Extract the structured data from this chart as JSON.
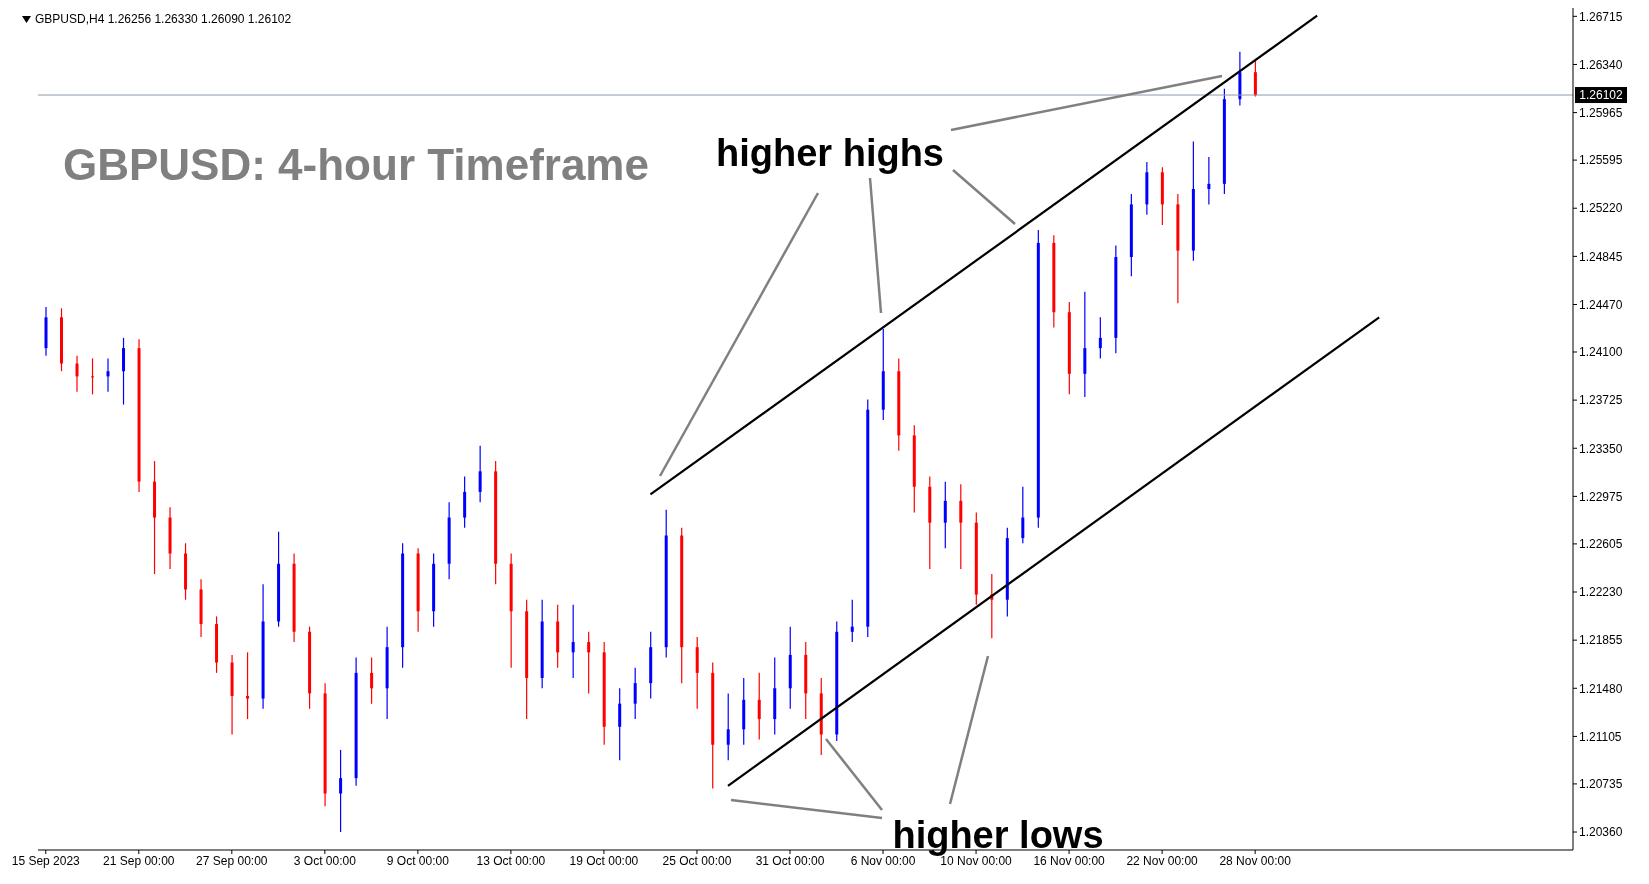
{
  "chart_data": {
    "type": "candlestick",
    "title": "GBPUSD: 4-hour Timeframe",
    "subtitle": "GBPUSD,H4  1.26256 1.26330 1.26090 1.26102",
    "annotations": [
      "higher highs",
      "higher lows"
    ],
    "categories": [
      "15 Sep 2023",
      null,
      null,
      null,
      null,
      null,
      "21 Sep 00:00",
      null,
      null,
      null,
      null,
      null,
      "27 Sep 00:00",
      null,
      null,
      null,
      null,
      null,
      "3 Oct 00:00",
      null,
      null,
      null,
      null,
      null,
      "9 Oct 00:00",
      null,
      null,
      null,
      null,
      null,
      "13 Oct 00:00",
      null,
      null,
      null,
      null,
      null,
      "19 Oct 00:00",
      null,
      null,
      null,
      null,
      null,
      "25 Oct 00:00",
      null,
      null,
      null,
      null,
      null,
      "31 Oct 00:00",
      null,
      null,
      null,
      null,
      null,
      "6 Nov 00:00",
      null,
      null,
      null,
      null,
      null,
      "10 Nov 00:00",
      null,
      null,
      null,
      null,
      null,
      "16 Nov 00:00",
      null,
      null,
      null,
      null,
      null,
      "22 Nov 00:00",
      null,
      null,
      null,
      null,
      null,
      "28 Nov 00:00",
      null,
      null,
      null,
      null,
      null,
      null,
      null,
      null,
      null,
      null,
      null,
      null,
      null,
      null,
      null,
      null,
      null,
      null,
      null,
      null
    ],
    "ohlc": [
      [
        1.2413,
        1.2445,
        1.2407,
        1.2437
      ],
      [
        1.2437,
        1.2444,
        1.2395,
        1.2401
      ],
      [
        1.2401,
        1.2407,
        1.2379,
        1.2391
      ],
      [
        1.2391,
        1.2405,
        1.2377,
        1.2391
      ],
      [
        1.2391,
        1.2405,
        1.2379,
        1.2395
      ],
      [
        1.2395,
        1.2421,
        1.2369,
        1.2413
      ],
      [
        1.2413,
        1.242,
        1.2301,
        1.2309
      ],
      [
        1.2309,
        1.2325,
        1.2237,
        1.2281
      ],
      [
        1.2281,
        1.2289,
        1.2241,
        1.2253
      ],
      [
        1.2253,
        1.2261,
        1.2217,
        1.2225
      ],
      [
        1.2225,
        1.2233,
        1.2188,
        1.2198
      ],
      [
        1.2198,
        1.2204,
        1.216,
        1.2168
      ],
      [
        1.2168,
        1.2174,
        1.2112,
        1.2142
      ],
      [
        1.2142,
        1.2176,
        1.2124,
        1.214
      ],
      [
        1.214,
        1.2229,
        1.2132,
        1.22
      ],
      [
        1.22,
        1.227,
        1.2196,
        1.2245
      ],
      [
        1.2245,
        1.2253,
        1.2184,
        1.2192
      ],
      [
        1.2192,
        1.2196,
        1.2132,
        1.2144
      ],
      [
        1.2144,
        1.2152,
        1.2056,
        1.2066
      ],
      [
        1.2066,
        1.21,
        1.2036,
        1.2078
      ],
      [
        1.2078,
        1.2172,
        1.2072,
        1.216
      ],
      [
        1.216,
        1.2172,
        1.2136,
        1.2148
      ],
      [
        1.2148,
        1.2196,
        1.2124,
        1.218
      ],
      [
        1.218,
        1.2261,
        1.2164,
        1.2253
      ],
      [
        1.2253,
        1.2257,
        1.2192,
        1.2208
      ],
      [
        1.2208,
        1.2253,
        1.2196,
        1.2245
      ],
      [
        1.2245,
        1.2293,
        1.2233,
        1.2281
      ],
      [
        1.2281,
        1.2313,
        1.2273,
        1.2301
      ],
      [
        1.2301,
        1.2337,
        1.2293,
        1.2317
      ],
      [
        1.2317,
        1.2325,
        1.2229,
        1.2245
      ],
      [
        1.2245,
        1.2253,
        1.2164,
        1.2208
      ],
      [
        1.2208,
        1.2217,
        1.2124,
        1.2156
      ],
      [
        1.2156,
        1.2217,
        1.2148,
        1.22
      ],
      [
        1.22,
        1.2213,
        1.2164,
        1.2176
      ],
      [
        1.2176,
        1.2213,
        1.2156,
        1.2184
      ],
      [
        1.2184,
        1.2192,
        1.2144,
        1.2176
      ],
      [
        1.2176,
        1.2184,
        1.2104,
        1.2118
      ],
      [
        1.2118,
        1.2148,
        1.2092,
        1.2136
      ],
      [
        1.2136,
        1.2164,
        1.2124,
        1.2152
      ],
      [
        1.2152,
        1.2192,
        1.214,
        1.218
      ],
      [
        1.218,
        1.2287,
        1.2172,
        1.2267
      ],
      [
        1.2267,
        1.2273,
        1.2152,
        1.218
      ],
      [
        1.218,
        1.2188,
        1.2132,
        1.216
      ],
      [
        1.216,
        1.2168,
        1.207,
        1.2104
      ],
      [
        1.2104,
        1.2144,
        1.2092,
        1.2116
      ],
      [
        1.2116,
        1.2156,
        1.2104,
        1.2139
      ],
      [
        1.2139,
        1.216,
        1.2108,
        1.2124
      ],
      [
        1.2124,
        1.2172,
        1.2112,
        1.2148
      ],
      [
        1.2148,
        1.2196,
        1.2132,
        1.2174
      ],
      [
        1.2174,
        1.2184,
        1.2124,
        1.2144
      ],
      [
        1.2144,
        1.2156,
        1.2096,
        1.2112
      ],
      [
        1.2112,
        1.22,
        1.2107,
        1.2192
      ],
      [
        1.2192,
        1.2217,
        1.2184,
        1.2196
      ],
      [
        1.2196,
        1.2373,
        1.2188,
        1.2365
      ],
      [
        1.2365,
        1.2428,
        1.2357,
        1.2395
      ],
      [
        1.2395,
        1.2405,
        1.2333,
        1.2345
      ],
      [
        1.2345,
        1.2353,
        1.2285,
        1.2305
      ],
      [
        1.2305,
        1.2313,
        1.2241,
        1.2277
      ],
      [
        1.2277,
        1.2309,
        1.2257,
        1.2294
      ],
      [
        1.2294,
        1.2307,
        1.2241,
        1.2277
      ],
      [
        1.2277,
        1.2285,
        1.2213,
        1.2221
      ],
      [
        1.2221,
        1.2237,
        1.2187,
        1.2217
      ],
      [
        1.2217,
        1.2273,
        1.2204,
        1.2265
      ],
      [
        1.2265,
        1.2305,
        1.2261,
        1.2281
      ],
      [
        1.2281,
        1.2505,
        1.2273,
        1.2495
      ],
      [
        1.2495,
        1.2501,
        1.2429,
        1.2441
      ],
      [
        1.2441,
        1.2449,
        1.2377,
        1.2393
      ],
      [
        1.2393,
        1.2457,
        1.2375,
        1.2413
      ],
      [
        1.2413,
        1.2437,
        1.2405,
        1.2421
      ],
      [
        1.2421,
        1.2493,
        1.2409,
        1.2484
      ],
      [
        1.2484,
        1.2533,
        1.2469,
        1.2525
      ],
      [
        1.2525,
        1.2558,
        1.2517,
        1.255
      ],
      [
        1.255,
        1.2554,
        1.2509,
        1.2525
      ],
      [
        1.2525,
        1.2533,
        1.2448,
        1.2489
      ],
      [
        1.2489,
        1.2574,
        1.2481,
        1.2537
      ],
      [
        1.2537,
        1.2562,
        1.2525,
        1.2541
      ],
      [
        1.2541,
        1.2615,
        1.2533,
        1.2607
      ],
      [
        1.2607,
        1.2644,
        1.2602,
        1.2628
      ],
      [
        1.2628,
        1.2638,
        1.2609,
        1.261
      ],
      null,
      null,
      null,
      null,
      null,
      null,
      null,
      null,
      null,
      null,
      null,
      null,
      null,
      null,
      null,
      null,
      null,
      null,
      null,
      null
    ],
    "colors": [
      "#0000ff",
      "#ff0000",
      "#ff0000",
      "#ff0000",
      "#0000ff",
      "#0000ff",
      "#ff0000",
      "#ff0000",
      "#ff0000",
      "#ff0000",
      "#ff0000",
      "#ff0000",
      "#ff0000",
      "#ff0000",
      "#0000ff",
      "#0000ff",
      "#ff0000",
      "#ff0000",
      "#ff0000",
      "#0000ff",
      "#0000ff",
      "#ff0000",
      "#0000ff",
      "#0000ff",
      "#ff0000",
      "#0000ff",
      "#0000ff",
      "#0000ff",
      "#0000ff",
      "#ff0000",
      "#ff0000",
      "#ff0000",
      "#0000ff",
      "#ff0000",
      "#0000ff",
      "#ff0000",
      "#ff0000",
      "#0000ff",
      "#0000ff",
      "#0000ff",
      "#0000ff",
      "#ff0000",
      "#ff0000",
      "#ff0000",
      "#0000ff",
      "#0000ff",
      "#ff0000",
      "#0000ff",
      "#0000ff",
      "#ff0000",
      "#ff0000",
      "#0000ff",
      "#0000ff",
      "#0000ff",
      "#0000ff",
      "#ff0000",
      "#ff0000",
      "#ff0000",
      "#0000ff",
      "#ff0000",
      "#ff0000",
      "#ff0000",
      "#0000ff",
      "#0000ff",
      "#0000ff",
      "#ff0000",
      "#ff0000",
      "#0000ff",
      "#0000ff",
      "#0000ff",
      "#0000ff",
      "#0000ff",
      "#ff0000",
      "#ff0000",
      "#0000ff",
      "#0000ff",
      "#0000ff",
      "#0000ff",
      "#ff0000",
      null,
      null,
      null,
      null,
      null,
      null,
      null,
      null,
      null,
      null,
      null,
      null,
      null,
      null,
      null,
      null,
      null,
      null,
      null,
      null
    ],
    "series": [
      {
        "type": "line",
        "color": "#000000",
        "values": [
          null,
          null,
          null,
          null,
          null,
          null,
          null,
          null,
          null,
          null,
          null,
          null,
          null,
          null,
          null,
          null,
          null,
          null,
          null,
          null,
          null,
          null,
          null,
          null,
          null,
          null,
          null,
          null,
          null,
          null,
          null,
          null,
          null,
          null,
          null,
          null,
          null,
          null,
          null,
          1.2299,
          null,
          null,
          null,
          null,
          null,
          null,
          null,
          null,
          null,
          null,
          null,
          null,
          null,
          null,
          null,
          null,
          null,
          null,
          null,
          null,
          null,
          null,
          null,
          null,
          null,
          null,
          null,
          null,
          null,
          null,
          null,
          null,
          null,
          null,
          null,
          null,
          null,
          null,
          null,
          null,
          null,
          null,
          1.2672,
          null,
          null,
          null,
          null,
          null,
          null,
          null,
          null,
          null,
          null,
          null,
          null,
          null,
          null,
          null,
          null
        ]
      },
      {
        "type": "line",
        "color": "#000000",
        "values": [
          null,
          null,
          null,
          null,
          null,
          null,
          null,
          null,
          null,
          null,
          null,
          null,
          null,
          null,
          null,
          null,
          null,
          null,
          null,
          null,
          null,
          null,
          null,
          null,
          null,
          null,
          null,
          null,
          null,
          null,
          null,
          null,
          null,
          null,
          null,
          null,
          null,
          null,
          null,
          null,
          null,
          null,
          null,
          null,
          1.2072,
          null,
          null,
          null,
          null,
          null,
          null,
          null,
          null,
          null,
          null,
          null,
          null,
          null,
          null,
          null,
          null,
          null,
          null,
          null,
          null,
          null,
          null,
          null,
          null,
          null,
          null,
          null,
          null,
          null,
          null,
          null,
          null,
          null,
          null,
          null,
          null,
          null,
          null,
          null,
          null,
          null,
          1.2437,
          null,
          null,
          null,
          null,
          null,
          null,
          null,
          null,
          null,
          null,
          null,
          null
        ]
      }
    ],
    "ylim": [
      1.2022,
      1.2678
    ],
    "yticks": [
      {
        "value": 1.2036,
        "label": "1.20360"
      },
      {
        "value": 1.20735,
        "label": "1.20735"
      },
      {
        "value": 1.21105,
        "label": "1.21105"
      },
      {
        "value": 1.2148,
        "label": "1.21480"
      },
      {
        "value": 1.21855,
        "label": "1.21855"
      },
      {
        "value": 1.2223,
        "label": "1.22230"
      },
      {
        "value": 1.22605,
        "label": "1.22605"
      },
      {
        "value": 1.22975,
        "label": "1.22975"
      },
      {
        "value": 1.2335,
        "label": "1.23350"
      },
      {
        "value": 1.23725,
        "label": "1.23725"
      },
      {
        "value": 1.241,
        "label": "1.24100"
      },
      {
        "value": 1.2447,
        "label": "1.24470"
      },
      {
        "value": 1.24845,
        "label": "1.24845"
      },
      {
        "value": 1.2522,
        "label": "1.25220"
      },
      {
        "value": 1.25595,
        "label": "1.25595"
      },
      {
        "value": 1.25965,
        "label": "1.25965"
      },
      {
        "value": 1.2634,
        "label": "1.26340"
      },
      {
        "value": 1.26715,
        "label": "1.26715"
      }
    ],
    "ref_lines": [
      {
        "axis": "y",
        "value": 1.26102,
        "label": "1.26102",
        "color": "#8c9aab"
      }
    ]
  }
}
